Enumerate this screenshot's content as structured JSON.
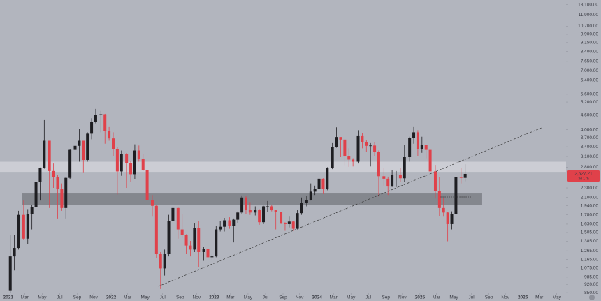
{
  "chart_data": {
    "type": "candlestick",
    "log_scale": true,
    "background": "#b2b5be",
    "up_color": "#1e1e22",
    "down_color": "#e0414a",
    "xlim": [
      2020.92,
      2026.42
    ],
    "ylim": [
      845,
      13700
    ],
    "yticks": [
      {
        "value": 13100,
        "label": "13,100.00"
      },
      {
        "value": 11900,
        "label": "11,900.00"
      },
      {
        "value": 10700,
        "label": "10,700.00"
      },
      {
        "value": 9900,
        "label": "9,900.00"
      },
      {
        "value": 9150,
        "label": "9,150.00"
      },
      {
        "value": 8400,
        "label": "8,400.00"
      },
      {
        "value": 7650,
        "label": "7,650.00"
      },
      {
        "value": 7000,
        "label": "7,000.00"
      },
      {
        "value": 6400,
        "label": "6,400.00"
      },
      {
        "value": 5600,
        "label": "5,600.00"
      },
      {
        "value": 5200,
        "label": "5,200.00"
      },
      {
        "value": 4600,
        "label": "4,600.00"
      },
      {
        "value": 4000,
        "label": "4,000.00"
      },
      {
        "value": 3700,
        "label": "3,700.00"
      },
      {
        "value": 3400,
        "label": "3,400.00"
      },
      {
        "value": 3100,
        "label": "3,100.00"
      },
      {
        "value": 2800,
        "label": "2,800.00"
      },
      {
        "value": 2300,
        "label": "2,300.00"
      },
      {
        "value": 2100,
        "label": "2,100.00"
      },
      {
        "value": 1940,
        "label": "1,940.00"
      },
      {
        "value": 1780,
        "label": "1,780.00"
      },
      {
        "value": 1630,
        "label": "1,630.00"
      },
      {
        "value": 1505,
        "label": "1,505.00"
      },
      {
        "value": 1385,
        "label": "1,385.00"
      },
      {
        "value": 1265,
        "label": "1,265.00"
      },
      {
        "value": 1165,
        "label": "1,165.00"
      },
      {
        "value": 1075,
        "label": "1,075.00"
      },
      {
        "value": 985,
        "label": "985.00"
      },
      {
        "value": 920,
        "label": "920.00"
      },
      {
        "value": 850,
        "label": "850.00"
      }
    ],
    "xticks": [
      2021,
      {
        "value": 2021.16,
        "label": "Mar"
      },
      {
        "value": 2021.33,
        "label": "May"
      },
      {
        "value": 2021.5,
        "label": "Jul"
      },
      {
        "value": 2021.67,
        "label": "Sep"
      },
      {
        "value": 2021.83,
        "label": "Nov"
      },
      2022,
      {
        "value": 2022.16,
        "label": "Mar"
      },
      {
        "value": 2022.33,
        "label": "May"
      },
      {
        "value": 2022.5,
        "label": "Jul"
      },
      {
        "value": 2022.67,
        "label": "Sep"
      },
      {
        "value": 2022.83,
        "label": "Nov"
      },
      2023,
      {
        "value": 2023.16,
        "label": "Mar"
      },
      {
        "value": 2023.33,
        "label": "May"
      },
      {
        "value": 2023.5,
        "label": "Jul"
      },
      {
        "value": 2023.67,
        "label": "Sep"
      },
      {
        "value": 2023.83,
        "label": "Nov"
      },
      2024,
      {
        "value": 2024.16,
        "label": "Mar"
      },
      {
        "value": 2024.33,
        "label": "May"
      },
      {
        "value": 2024.5,
        "label": "Jul"
      },
      {
        "value": 2024.67,
        "label": "Sep"
      },
      {
        "value": 2024.83,
        "label": "Nov"
      },
      2025,
      {
        "value": 2025.16,
        "label": "Mar"
      },
      {
        "value": 2025.33,
        "label": "May"
      },
      {
        "value": 2025.5,
        "label": "Jul"
      },
      {
        "value": 2025.67,
        "label": "Sep"
      },
      {
        "value": 2025.83,
        "label": "Nov"
      },
      2026,
      {
        "value": 2026.16,
        "label": "Mar"
      },
      {
        "value": 2026.33,
        "label": "May"
      }
    ],
    "x": [
      2021.02,
      2021.06,
      2021.1,
      2021.15,
      2021.19,
      2021.23,
      2021.27,
      2021.31,
      2021.35,
      2021.4,
      2021.44,
      2021.48,
      2021.52,
      2021.56,
      2021.6,
      2021.65,
      2021.69,
      2021.73,
      2021.77,
      2021.81,
      2021.85,
      2021.9,
      2021.94,
      2021.98,
      2022.02,
      2022.06,
      2022.1,
      2022.15,
      2022.19,
      2022.23,
      2022.27,
      2022.31,
      2022.35,
      2022.4,
      2022.44,
      2022.48,
      2022.52,
      2022.56,
      2022.6,
      2022.65,
      2022.69,
      2022.73,
      2022.77,
      2022.81,
      2022.85,
      2022.9,
      2022.94,
      2022.98,
      2023.02,
      2023.06,
      2023.1,
      2023.15,
      2023.19,
      2023.23,
      2023.27,
      2023.31,
      2023.35,
      2023.4,
      2023.44,
      2023.48,
      2023.52,
      2023.56,
      2023.6,
      2023.65,
      2023.69,
      2023.73,
      2023.77,
      2023.81,
      2023.85,
      2023.9,
      2023.94,
      2023.98,
      2024.02,
      2024.06,
      2024.1,
      2024.15,
      2024.19,
      2024.23,
      2024.27,
      2024.31,
      2024.35,
      2024.4,
      2024.44,
      2024.48,
      2024.52,
      2024.56,
      2024.6,
      2024.65,
      2024.69,
      2024.73,
      2024.77,
      2024.81,
      2024.85,
      2024.9,
      2024.94,
      2024.98,
      2025.02,
      2025.06,
      2025.1,
      2025.15,
      2025.19,
      2025.23,
      2025.27,
      2025.31,
      2025.35,
      2025.4,
      2025.44
    ],
    "ohlc": [
      [
        870,
        1470,
        850,
        1200
      ],
      [
        1200,
        1470,
        1050,
        1300
      ],
      [
        1300,
        1850,
        1280,
        1780
      ],
      [
        1780,
        2040,
        1400,
        1420
      ],
      [
        1420,
        1880,
        1350,
        1800
      ],
      [
        1800,
        1950,
        1550,
        1920
      ],
      [
        1920,
        2460,
        1900,
        2430
      ],
      [
        2430,
        2790,
        2040,
        2770
      ],
      [
        2770,
        4380,
        2760,
        3600
      ],
      [
        3600,
        3600,
        1900,
        2700
      ],
      [
        2700,
        2900,
        2300,
        2550
      ],
      [
        2550,
        2600,
        1720,
        2270
      ],
      [
        2270,
        2400,
        1850,
        1900
      ],
      [
        1900,
        2550,
        1720,
        2530
      ],
      [
        2530,
        3330,
        2500,
        3300
      ],
      [
        3300,
        3470,
        2950,
        3430
      ],
      [
        3430,
        4020,
        2950,
        3600
      ],
      [
        3600,
        3600,
        2650,
        3000
      ],
      [
        3000,
        3900,
        2950,
        3850
      ],
      [
        3850,
        4460,
        3650,
        4300
      ],
      [
        4300,
        4870,
        4250,
        4600
      ],
      [
        4600,
        4780,
        3900,
        4630
      ],
      [
        4630,
        4650,
        3500,
        3960
      ],
      [
        3960,
        4100,
        3600,
        3680
      ],
      [
        3680,
        3900,
        3100,
        3330
      ],
      [
        3330,
        3400,
        2160,
        2690
      ],
      [
        2690,
        3280,
        2580,
        3180
      ],
      [
        3180,
        3200,
        2300,
        2920
      ],
      [
        2920,
        2960,
        2430,
        2620
      ],
      [
        2620,
        3480,
        2500,
        3280
      ],
      [
        3280,
        3440,
        2950,
        3040
      ],
      [
        3040,
        3180,
        2700,
        2730
      ],
      [
        2730,
        3000,
        1700,
        2050
      ],
      [
        2050,
        2150,
        1750,
        1940
      ],
      [
        1940,
        1960,
        1180,
        1230
      ],
      [
        1230,
        1250,
        880,
        1070
      ],
      [
        1070,
        1280,
        1000,
        1230
      ],
      [
        1230,
        1780,
        1200,
        1680
      ],
      [
        1680,
        2020,
        1580,
        1900
      ],
      [
        1900,
        1910,
        1420,
        1550
      ],
      [
        1550,
        1790,
        1430,
        1470
      ],
      [
        1470,
        1480,
        1230,
        1330
      ],
      [
        1330,
        1390,
        1200,
        1280
      ],
      [
        1280,
        1640,
        1250,
        1570
      ],
      [
        1570,
        1680,
        1080,
        1250
      ],
      [
        1250,
        1310,
        1150,
        1290
      ],
      [
        1290,
        1350,
        1160,
        1190
      ],
      [
        1190,
        1230,
        1160,
        1200
      ],
      [
        1200,
        1600,
        1190,
        1550
      ],
      [
        1550,
        1680,
        1520,
        1590
      ],
      [
        1590,
        1730,
        1520,
        1690
      ],
      [
        1690,
        1740,
        1560,
        1600
      ],
      [
        1600,
        1720,
        1370,
        1700
      ],
      [
        1700,
        1840,
        1650,
        1820
      ],
      [
        1820,
        2140,
        1800,
        2100
      ],
      [
        2100,
        2130,
        1800,
        1870
      ],
      [
        1870,
        2010,
        1780,
        1820
      ],
      [
        1820,
        1930,
        1770,
        1870
      ],
      [
        1870,
        1880,
        1620,
        1660
      ],
      [
        1660,
        1940,
        1630,
        1930
      ],
      [
        1930,
        2030,
        1830,
        1930
      ],
      [
        1930,
        1950,
        1840,
        1860
      ],
      [
        1860,
        1870,
        1550,
        1830
      ],
      [
        1830,
        1830,
        1630,
        1640
      ],
      [
        1640,
        1660,
        1530,
        1630
      ],
      [
        1630,
        1750,
        1580,
        1670
      ],
      [
        1670,
        1680,
        1530,
        1560
      ],
      [
        1560,
        1860,
        1550,
        1810
      ],
      [
        1810,
        2100,
        1780,
        2000
      ],
      [
        2000,
        2130,
        1930,
        2050
      ],
      [
        2050,
        2400,
        2040,
        2220
      ],
      [
        2220,
        2350,
        2150,
        2280
      ],
      [
        2280,
        2720,
        2100,
        2510
      ],
      [
        2510,
        2520,
        2170,
        2280
      ],
      [
        2280,
        2800,
        2250,
        2770
      ],
      [
        2770,
        3520,
        2750,
        3380
      ],
      [
        3380,
        4090,
        3370,
        3730
      ],
      [
        3730,
        3680,
        3080,
        3640
      ],
      [
        3640,
        3640,
        2850,
        3100
      ],
      [
        3100,
        3350,
        2810,
        3010
      ],
      [
        3010,
        3050,
        2820,
        2950
      ],
      [
        2950,
        3980,
        2900,
        3760
      ],
      [
        3760,
        3880,
        3350,
        3560
      ],
      [
        3560,
        3630,
        3230,
        3430
      ],
      [
        3430,
        3520,
        2820,
        3440
      ],
      [
        3440,
        3560,
        3110,
        3230
      ],
      [
        3230,
        3280,
        2120,
        2570
      ],
      [
        2570,
        2790,
        2350,
        2510
      ],
      [
        2510,
        2560,
        2150,
        2330
      ],
      [
        2330,
        2730,
        2320,
        2600
      ],
      [
        2600,
        2700,
        2320,
        2610
      ],
      [
        2610,
        2770,
        2440,
        2520
      ],
      [
        2520,
        3450,
        2430,
        3080
      ],
      [
        3080,
        3740,
        2950,
        3700
      ],
      [
        3700,
        4100,
        3500,
        3900
      ],
      [
        3900,
        3980,
        3100,
        3330
      ],
      [
        3330,
        3740,
        3210,
        3450
      ],
      [
        3450,
        3450,
        3050,
        3300
      ],
      [
        3300,
        3380,
        2120,
        2690
      ],
      [
        2690,
        2860,
        2080,
        2230
      ],
      [
        2230,
        2550,
        1760,
        1900
      ],
      [
        1900,
        2100,
        1750,
        1820
      ],
      [
        1820,
        1830,
        1385,
        1630
      ],
      [
        1630,
        1840,
        1550,
        1800
      ],
      [
        1800,
        2740,
        1780,
        2550
      ],
      [
        2550,
        2780,
        2400,
        2530
      ],
      [
        2530,
        2880,
        2450,
        2627.21
      ]
    ],
    "last_price_label": "2,627.21",
    "countdown": "3d 17h",
    "zones": [
      {
        "from": 2660,
        "to": 2950,
        "start": 2020.92,
        "end": 2026.42,
        "color": "rgba(235,236,240,0.45)"
      },
      {
        "from": 1961,
        "to": 2181,
        "start": 2021.135,
        "end": 2025.605,
        "color": "rgba(95,96,102,0.55)"
      }
    ],
    "trendline": {
      "x": [
        2022.46,
        2026.18
      ],
      "y": [
        903,
        4069
      ],
      "color": "#333"
    },
    "levelline": {
      "x": [
        2025.2,
        2025.51
      ],
      "y": [
        2110,
        2110
      ],
      "color": "#333"
    }
  }
}
